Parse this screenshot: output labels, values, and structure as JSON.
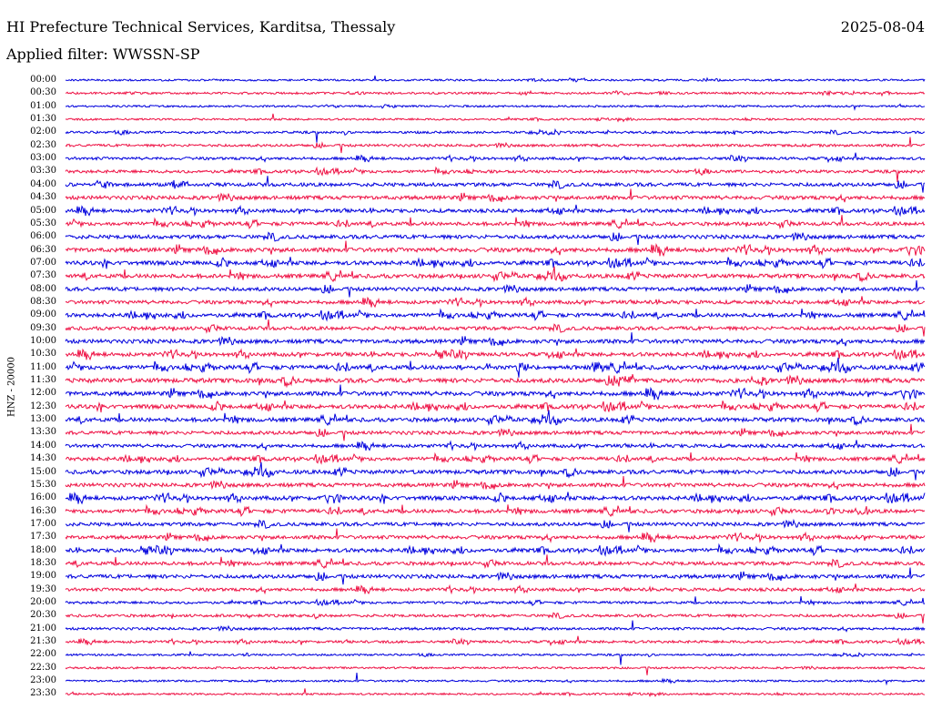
{
  "header": {
    "title": "HI Prefecture Technical Services, Karditsa, Thessaly",
    "date": "2025-08-04",
    "filter": "Applied filter: WWSSN-SP"
  },
  "axis": {
    "ylabel": "HNZ - 20000"
  },
  "colors": {
    "blue": "#0000dd",
    "red": "#ee1144",
    "background": "#ffffff"
  },
  "rows": [
    {
      "time": "00:00",
      "color": "blue",
      "level": 0.2
    },
    {
      "time": "00:30",
      "color": "red",
      "level": 0.25
    },
    {
      "time": "01:00",
      "color": "blue",
      "level": 0.2
    },
    {
      "time": "01:30",
      "color": "red",
      "level": 0.2
    },
    {
      "time": "02:00",
      "color": "blue",
      "level": 0.3
    },
    {
      "time": "02:30",
      "color": "red",
      "level": 0.35
    },
    {
      "time": "03:00",
      "color": "blue",
      "level": 0.4
    },
    {
      "time": "03:30",
      "color": "red",
      "level": 0.45
    },
    {
      "time": "04:00",
      "color": "blue",
      "level": 0.6
    },
    {
      "time": "04:30",
      "color": "red",
      "level": 0.65
    },
    {
      "time": "05:00",
      "color": "blue",
      "level": 0.6
    },
    {
      "time": "05:30",
      "color": "red",
      "level": 0.6
    },
    {
      "time": "06:00",
      "color": "blue",
      "level": 0.65
    },
    {
      "time": "06:30",
      "color": "red",
      "level": 0.75
    },
    {
      "time": "07:00",
      "color": "blue",
      "level": 0.7
    },
    {
      "time": "07:30",
      "color": "red",
      "level": 0.7
    },
    {
      "time": "08:00",
      "color": "blue",
      "level": 0.65
    },
    {
      "time": "08:30",
      "color": "red",
      "level": 0.6
    },
    {
      "time": "09:00",
      "color": "blue",
      "level": 0.65
    },
    {
      "time": "09:30",
      "color": "red",
      "level": 0.6
    },
    {
      "time": "10:00",
      "color": "blue",
      "level": 0.7
    },
    {
      "time": "10:30",
      "color": "red",
      "level": 0.65
    },
    {
      "time": "11:00",
      "color": "blue",
      "level": 0.75
    },
    {
      "time": "11:30",
      "color": "red",
      "level": 0.8
    },
    {
      "time": "12:00",
      "color": "blue",
      "level": 0.75
    },
    {
      "time": "12:30",
      "color": "red",
      "level": 0.7
    },
    {
      "time": "13:00",
      "color": "blue",
      "level": 0.7
    },
    {
      "time": "13:30",
      "color": "red",
      "level": 0.6
    },
    {
      "time": "14:00",
      "color": "blue",
      "level": 0.55
    },
    {
      "time": "14:30",
      "color": "red",
      "level": 0.6
    },
    {
      "time": "15:00",
      "color": "blue",
      "level": 0.7
    },
    {
      "time": "15:30",
      "color": "red",
      "level": 0.65
    },
    {
      "time": "16:00",
      "color": "blue",
      "level": 0.7
    },
    {
      "time": "16:30",
      "color": "red",
      "level": 0.65
    },
    {
      "time": "17:00",
      "color": "blue",
      "level": 0.6
    },
    {
      "time": "17:30",
      "color": "red",
      "level": 0.6
    },
    {
      "time": "18:00",
      "color": "blue",
      "level": 0.65
    },
    {
      "time": "18:30",
      "color": "red",
      "level": 0.6
    },
    {
      "time": "19:00",
      "color": "blue",
      "level": 0.65
    },
    {
      "time": "19:30",
      "color": "red",
      "level": 0.5
    },
    {
      "time": "20:00",
      "color": "blue",
      "level": 0.35
    },
    {
      "time": "20:30",
      "color": "red",
      "level": 0.4
    },
    {
      "time": "21:00",
      "color": "blue",
      "level": 0.35
    },
    {
      "time": "21:30",
      "color": "red",
      "level": 0.35
    },
    {
      "time": "22:00",
      "color": "blue",
      "level": 0.2
    },
    {
      "time": "22:30",
      "color": "red",
      "level": 0.2
    },
    {
      "time": "23:00",
      "color": "blue",
      "level": 0.2
    },
    {
      "time": "23:30",
      "color": "red",
      "level": 0.2
    }
  ]
}
